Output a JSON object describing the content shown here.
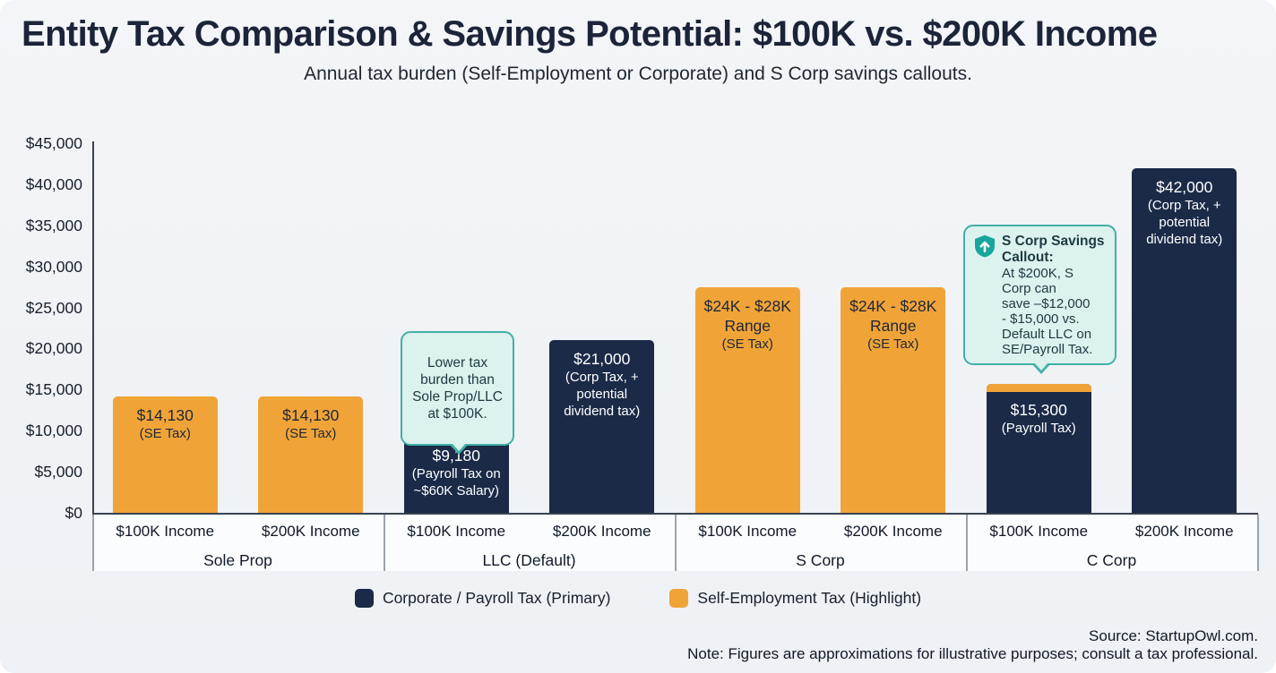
{
  "header": {
    "title": "Entity Tax Comparison & Savings Potential: $100K vs. $200K Income",
    "subtitle": "Annual tax burden (Self-Employment or Corporate) and S Corp savings callouts."
  },
  "colors": {
    "background": "#F0F2F6",
    "axis": "#3A4350",
    "navy": "#1B2A47",
    "orange": "#F0A438",
    "callout_background": "#DCF2EE",
    "callout_border": "#43B0A7",
    "shield_icon_teal": "#18A59B"
  },
  "chart_data": {
    "type": "bar",
    "title": "Entity Tax Comparison & Savings Potential: $100K vs. $200K Income",
    "xlabel": "",
    "ylabel": "",
    "ylim": [
      0,
      45000
    ],
    "y_tick_step": 5000,
    "grid": false,
    "legend_position": "bottom",
    "y_ticks": [
      {
        "label": "$45,000",
        "value": 45000
      },
      {
        "label": "$40,000",
        "value": 40000
      },
      {
        "label": "$35,000",
        "value": 35000
      },
      {
        "label": "$30,000",
        "value": 30000
      },
      {
        "label": "$25,000",
        "value": 25000
      },
      {
        "label": "$20,000",
        "value": 20000
      },
      {
        "label": "$15,000",
        "value": 15000
      },
      {
        "label": "$10,000",
        "value": 10000
      },
      {
        "label": "$5,000",
        "value": 5000
      },
      {
        "label": "$0",
        "value": 0
      }
    ],
    "series": [
      {
        "key": "corporate",
        "name": "Corporate / Payroll Tax (Primary)",
        "color": "#1B2A47"
      },
      {
        "key": "se",
        "name": "Self-Employment Tax (Highlight)",
        "color": "#F0A438"
      }
    ],
    "groups": [
      {
        "label": "Sole Prop",
        "bars": [
          {
            "income_label": "$100K Income",
            "value": 14130,
            "draw_value": 14130,
            "value_label": "$14,130",
            "note": "(SE Tax)",
            "series": "se",
            "cap": false
          },
          {
            "income_label": "$200K Income",
            "value": 14130,
            "draw_value": 14130,
            "value_label": "$14,130",
            "note": "(SE Tax)",
            "series": "se",
            "cap": false
          }
        ]
      },
      {
        "label": "LLC (Default)",
        "bars": [
          {
            "income_label": "$100K Income",
            "value": 9180,
            "draw_value": 10150,
            "value_label": "$9,180",
            "note": "(Payroll Tax on ~$60K Salary)",
            "series": "corporate",
            "cap": true
          },
          {
            "income_label": "$200K Income",
            "value": 21000,
            "draw_value": 21000,
            "value_label": "$21,000",
            "note": "(Corp Tax, + potential dividend tax)",
            "series": "corporate",
            "cap": false
          }
        ]
      },
      {
        "label": "S Corp",
        "bars": [
          {
            "income_label": "$100K Income",
            "value_min": 24000,
            "value_max": 28000,
            "draw_value": 27500,
            "value_label": "$24K - $28K Range",
            "note": "(SE Tax)",
            "series": "se",
            "cap": false
          },
          {
            "income_label": "$200K Income",
            "value_min": 24000,
            "value_max": 28000,
            "draw_value": 27500,
            "value_label": "$24K - $28K Range",
            "note": "(SE Tax)",
            "series": "se",
            "cap": false
          }
        ]
      },
      {
        "label": "C Corp",
        "bars": [
          {
            "income_label": "$100K Income",
            "value": 15300,
            "draw_value": 15700,
            "value_label": "$15,300",
            "note": "(Payroll Tax)",
            "series": "corporate",
            "cap": true
          },
          {
            "income_label": "$200K Income",
            "value": 42000,
            "draw_value": 42000,
            "value_label": "$42,000",
            "note": "(Corp Tax, + potential dividend tax)",
            "series": "corporate",
            "cap": false
          }
        ]
      }
    ]
  },
  "callouts": {
    "llc": {
      "text": "Lower tax\nburden than\nSole Prop/LLC\nat $100K."
    },
    "scorp": {
      "icon": "shield-up-arrow-icon",
      "title": "S Corp Savings\nCallout:",
      "body": "At $200K, S\nCorp can\nsave –$12,000\n- $15,000 vs.\nDefault LLC on\nSE/Payroll Tax."
    }
  },
  "footer": {
    "source": "Source: StartupOwl.com.",
    "note": "Note: Figures are approximations for illustrative purposes; consult a tax professional."
  }
}
